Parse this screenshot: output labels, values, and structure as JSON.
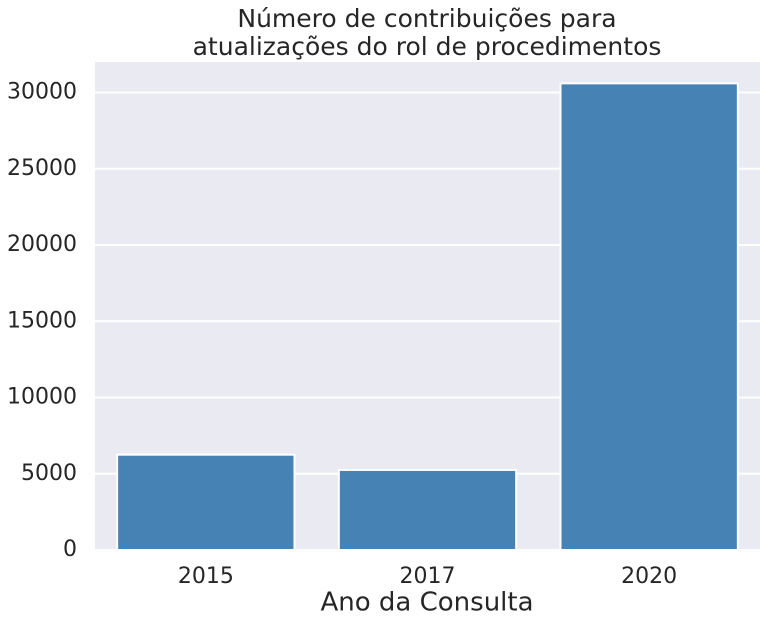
{
  "chart_data": {
    "type": "bar",
    "title": [
      "Número de contribuições para",
      "atualizações do rol de procedimentos"
    ],
    "x_label": "Ano da Consulta",
    "categories": [
      "2015",
      "2017",
      "2020"
    ],
    "values": [
      6250,
      5250,
      30600
    ],
    "color": "#4682b4",
    "ylim": [
      0,
      32000
    ],
    "yticks": [
      0,
      5000,
      10000,
      15000,
      20000,
      25000,
      30000
    ],
    "grid": true
  }
}
